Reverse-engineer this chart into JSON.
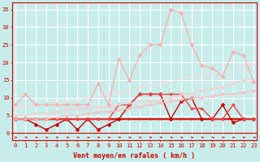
{
  "background_color": "#c8ecea",
  "grid_color": "#ffffff",
  "x_values": [
    0,
    1,
    2,
    3,
    4,
    5,
    6,
    7,
    8,
    9,
    10,
    11,
    12,
    13,
    14,
    15,
    16,
    17,
    18,
    19,
    20,
    21,
    22,
    23
  ],
  "xlabel": "Vent moyen/en rafales ( km/h )",
  "ylim": [
    -2,
    37
  ],
  "xlim": [
    -0.3,
    23.3
  ],
  "yticks": [
    0,
    5,
    10,
    15,
    20,
    25,
    30,
    35
  ],
  "series": [
    {
      "name": "flat_dark_red",
      "color": "#cc0000",
      "alpha": 1.0,
      "lw": 1.5,
      "marker": "s",
      "ms": 2.0,
      "y": [
        4,
        4,
        4,
        4,
        4,
        4,
        4,
        4,
        4,
        4,
        4,
        4,
        4,
        4,
        4,
        4,
        4,
        4,
        4,
        4,
        4,
        4,
        4,
        4
      ]
    },
    {
      "name": "flat_red2",
      "color": "#dd2222",
      "alpha": 1.0,
      "lw": 1.0,
      "marker": "s",
      "ms": 2.0,
      "y": [
        4,
        4,
        4,
        4,
        4,
        4,
        4,
        4,
        4,
        4,
        4,
        4,
        4,
        4,
        4,
        4,
        4,
        4,
        4,
        4,
        4,
        4,
        4,
        4
      ]
    },
    {
      "name": "zigzag_dark",
      "color": "#cc0000",
      "alpha": 1.0,
      "lw": 1.0,
      "marker": "D",
      "ms": 2.5,
      "y": [
        4,
        4,
        2.5,
        1,
        2.5,
        4,
        1,
        4,
        1,
        2.5,
        4,
        8,
        11,
        11,
        11,
        4,
        9,
        10,
        4,
        4,
        8,
        3,
        4,
        4
      ]
    },
    {
      "name": "zigzag_medium",
      "color": "#ee4444",
      "alpha": 1.0,
      "lw": 1.0,
      "marker": "D",
      "ms": 2.0,
      "y": [
        4,
        4,
        4,
        4,
        4,
        4,
        4,
        4,
        4,
        4,
        8,
        8,
        11,
        11,
        11,
        11,
        11,
        7,
        7,
        4,
        4,
        8,
        4,
        4
      ]
    },
    {
      "name": "slope_light1",
      "color": "#ffbbbb",
      "alpha": 0.9,
      "lw": 1.0,
      "marker": "D",
      "ms": 2.0,
      "y": [
        4,
        4,
        4,
        4,
        4.5,
        5,
        5,
        5.5,
        6,
        6,
        6.5,
        7,
        7.5,
        8,
        8.5,
        9,
        9.5,
        10,
        10,
        10.5,
        11,
        11,
        11.5,
        12
      ]
    },
    {
      "name": "slope_light2",
      "color": "#ffcccc",
      "alpha": 0.85,
      "lw": 1.0,
      "marker": "D",
      "ms": 2.0,
      "y": [
        5,
        5,
        5.5,
        5.5,
        6,
        6.5,
        7,
        7,
        7.5,
        7.5,
        8,
        8.5,
        9,
        9,
        9.5,
        10,
        11,
        11,
        12,
        12.5,
        13,
        14,
        15,
        15
      ]
    },
    {
      "name": "slope_light3",
      "color": "#ffdddd",
      "alpha": 0.8,
      "lw": 1.0,
      "marker": "D",
      "ms": 1.5,
      "y": [
        7,
        7.5,
        8,
        8,
        8.5,
        9,
        9.5,
        10,
        10.5,
        11,
        11.5,
        12,
        13,
        13.5,
        14,
        14.5,
        15.5,
        16,
        16.5,
        17,
        17.5,
        18,
        19,
        19.5
      ]
    },
    {
      "name": "big_peak",
      "color": "#ffaaaa",
      "alpha": 0.85,
      "lw": 1.0,
      "marker": "D",
      "ms": 2.5,
      "y": [
        8,
        11,
        8,
        8,
        8,
        8,
        8,
        8,
        14,
        8,
        21,
        15,
        22,
        25,
        25,
        35,
        34,
        25,
        19,
        18.5,
        16,
        23,
        22,
        14.5
      ]
    }
  ],
  "tick_fontsize": 5.0,
  "label_fontsize": 6.0
}
